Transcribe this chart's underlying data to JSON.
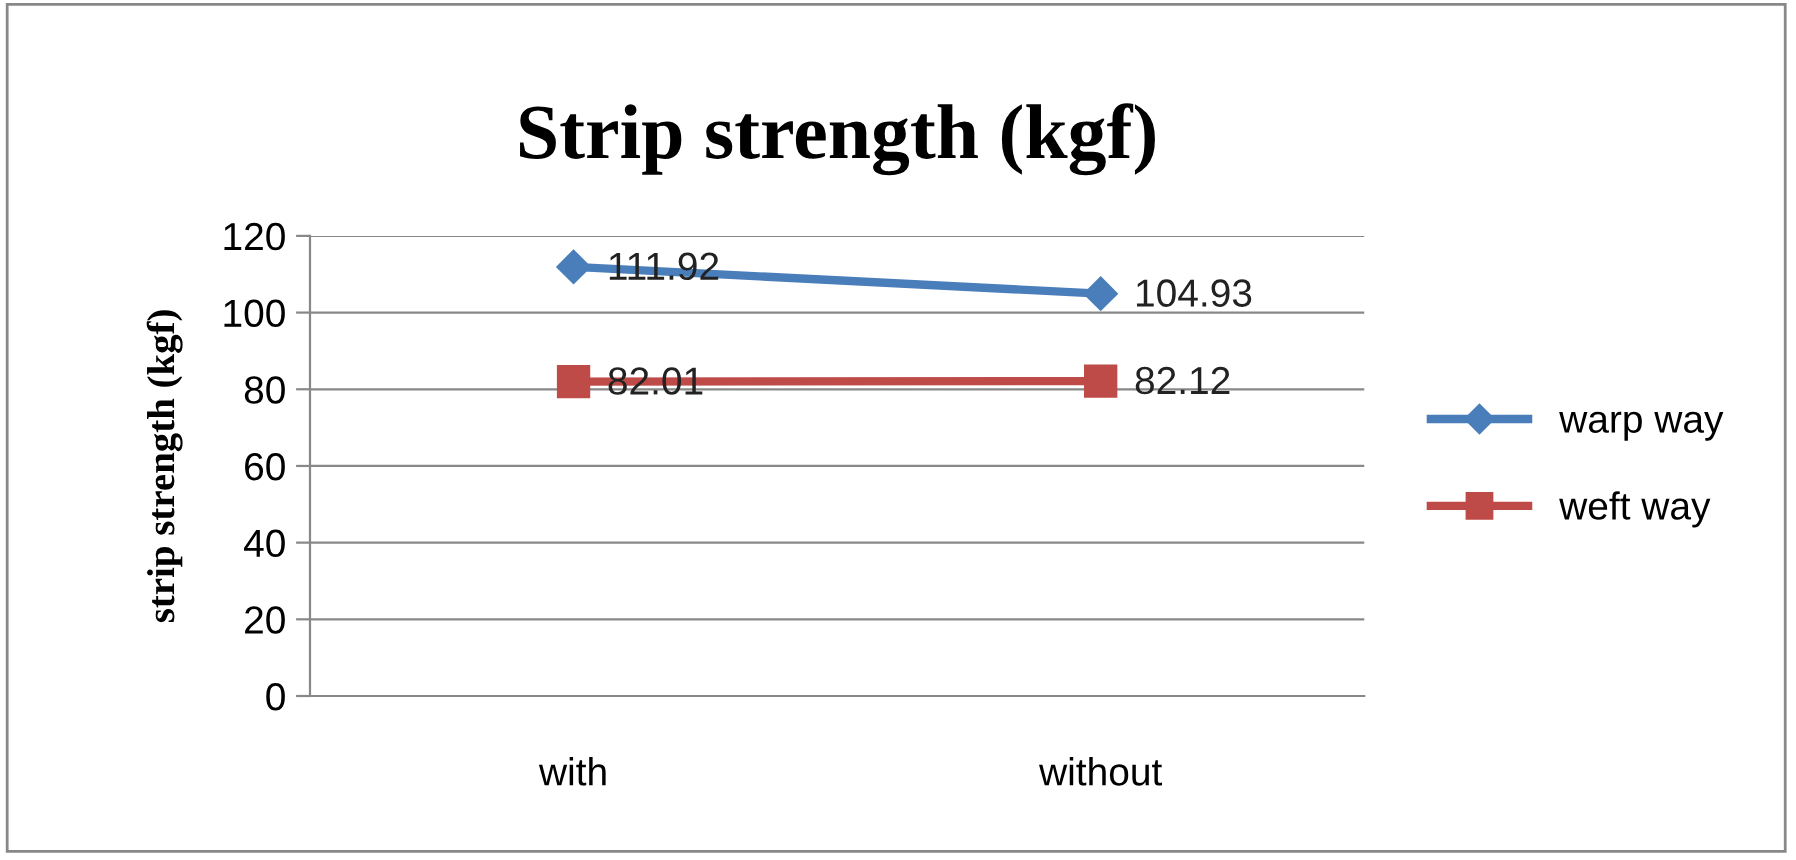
{
  "chart_data": {
    "type": "line",
    "title": "Strip strength (kgf)",
    "ylabel": "strip strength (kgf)",
    "categories": [
      "with",
      "without"
    ],
    "series": [
      {
        "name": "warp way",
        "color": "#4a7ebb",
        "values": [
          111.92,
          104.93
        ],
        "marker": "diamond"
      },
      {
        "name": "weft way",
        "color": "#be4b48",
        "values": [
          82.01,
          82.12
        ],
        "marker": "square"
      }
    ],
    "ylim": [
      0,
      120
    ],
    "yticks": [
      0,
      20,
      40,
      60,
      80,
      100,
      120
    ],
    "grid": "y",
    "legend": "right",
    "data_labels": true,
    "line_style": "solid"
  }
}
